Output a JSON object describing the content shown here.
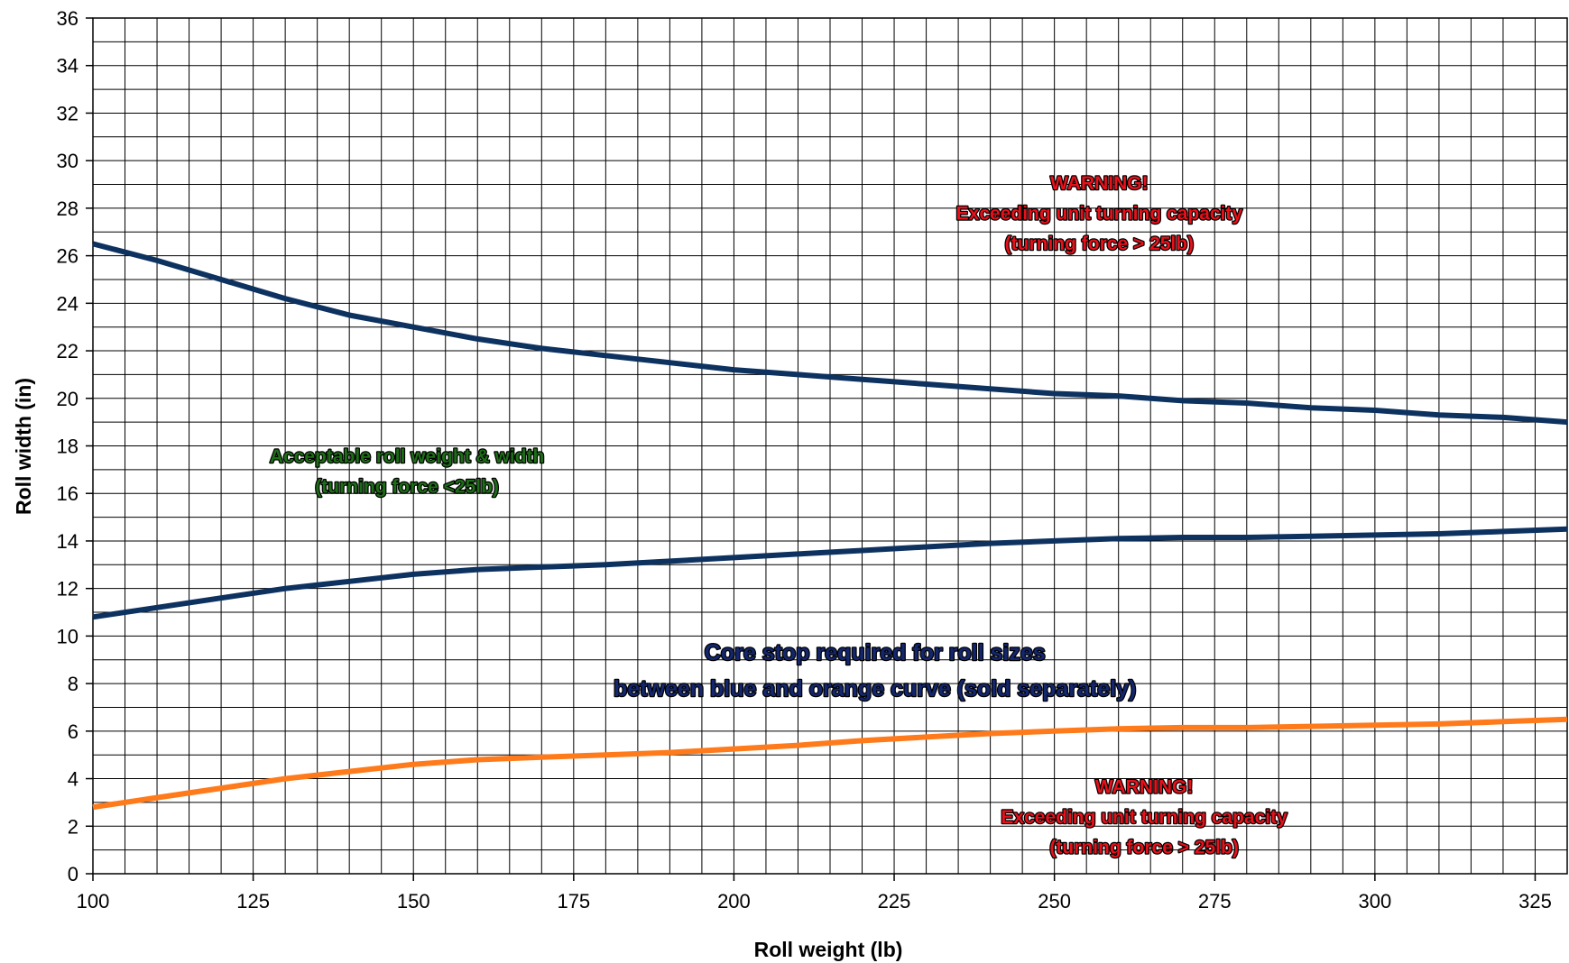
{
  "chart_data": {
    "type": "line",
    "xlabel": "Roll weight (lb)",
    "ylabel": "Roll width (in)",
    "xlim": [
      100,
      330
    ],
    "ylim": [
      0,
      36
    ],
    "x_ticks": [
      100,
      125,
      150,
      175,
      200,
      225,
      250,
      275,
      300,
      325
    ],
    "y_ticks": [
      0,
      2,
      4,
      6,
      8,
      10,
      12,
      14,
      16,
      18,
      20,
      22,
      24,
      26,
      28,
      30,
      32,
      34,
      36
    ],
    "grid": true,
    "x_minor_step": 5,
    "y_minor_step": 1,
    "colors": {
      "blue": "#0d3260",
      "orange": "#ff7a1a",
      "warning": "#e8101a",
      "ok": "#1c6e16",
      "core": "#13266e"
    },
    "series": [
      {
        "key": "upper-blue",
        "color": "#0d3260",
        "x": [
          100,
          110,
          120,
          130,
          140,
          150,
          160,
          170,
          180,
          190,
          200,
          210,
          220,
          230,
          240,
          250,
          260,
          270,
          280,
          290,
          300,
          310,
          320,
          330
        ],
        "y": [
          26.5,
          25.8,
          25.0,
          24.2,
          23.5,
          23.0,
          22.5,
          22.1,
          21.8,
          21.5,
          21.2,
          21.0,
          20.8,
          20.6,
          20.4,
          20.2,
          20.1,
          19.9,
          19.8,
          19.6,
          19.5,
          19.3,
          19.2,
          19.0
        ]
      },
      {
        "key": "lower-blue",
        "color": "#0d3260",
        "x": [
          100,
          110,
          120,
          130,
          140,
          150,
          160,
          170,
          180,
          190,
          200,
          210,
          220,
          230,
          240,
          250,
          260,
          270,
          280,
          290,
          300,
          310,
          320,
          330
        ],
        "y": [
          10.8,
          11.2,
          11.6,
          12.0,
          12.3,
          12.6,
          12.8,
          12.9,
          13.0,
          13.15,
          13.3,
          13.45,
          13.6,
          13.75,
          13.9,
          14.0,
          14.1,
          14.15,
          14.15,
          14.2,
          14.25,
          14.3,
          14.4,
          14.5
        ]
      },
      {
        "key": "orange",
        "color": "#ff7a1a",
        "x": [
          100,
          110,
          120,
          130,
          140,
          150,
          160,
          170,
          180,
          190,
          200,
          210,
          220,
          230,
          240,
          250,
          260,
          270,
          280,
          290,
          300,
          310,
          320,
          330
        ],
        "y": [
          2.8,
          3.2,
          3.6,
          4.0,
          4.3,
          4.6,
          4.8,
          4.9,
          5.0,
          5.1,
          5.25,
          5.4,
          5.6,
          5.75,
          5.9,
          6.0,
          6.1,
          6.15,
          6.15,
          6.2,
          6.25,
          6.3,
          6.4,
          6.5
        ]
      }
    ],
    "annotations": [
      {
        "key": "warn-top",
        "x": 257,
        "y": 28.8,
        "color": "#e8101a",
        "size": 21,
        "lines": [
          "WARNING!",
          "Exceeding unit turning capacity",
          "(turning force > 25lb)"
        ]
      },
      {
        "key": "ok-region",
        "x": 149,
        "y": 17.3,
        "color": "#1c6e16",
        "size": 21,
        "lines": [
          "Acceptable roll weight & width",
          "(turning force <25lb)"
        ]
      },
      {
        "key": "core-stop",
        "x": 222,
        "y": 9.0,
        "color": "#13266e",
        "size": 25,
        "lines": [
          "Core stop required for roll sizes",
          "between blue and orange curve (sold separately)"
        ]
      },
      {
        "key": "warn-bottom",
        "x": 264,
        "y": 3.4,
        "color": "#e8101a",
        "size": 21,
        "lines": [
          "WARNING!",
          "Exceeding unit turning capacity",
          "(turning force > 25lb)"
        ]
      }
    ]
  }
}
